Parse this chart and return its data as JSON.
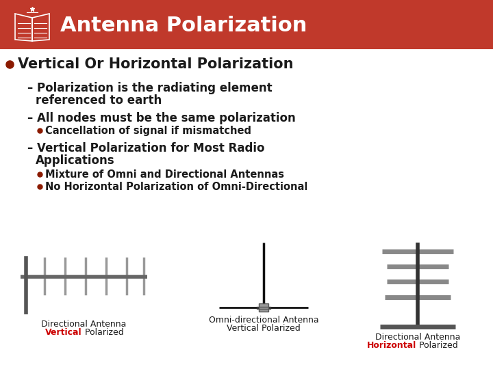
{
  "title": "Antenna Polarization",
  "header_bg": "#C0392B",
  "header_text_color": "#FFFFFF",
  "body_bg": "#FFFFFF",
  "body_text_color": "#1a1a1a",
  "bullet_color": "#8B1A00",
  "red_color": "#CC0000",
  "dark_color": "#1a1a1a",
  "bullet1": "Vertical Or Horizontal Polarization",
  "dash1_a": "Polarization is the radiating element",
  "dash1_b": "referenced to earth",
  "dash2": "All nodes must be the same polarization",
  "sub1": "Cancellation of signal if mismatched",
  "dash3_a": "Vertical Polarization for Most Radio",
  "dash3_b": "Applications",
  "sub2": "Mixture of Omni and Directional Antennas",
  "sub3": "No Horizontal Polarization of Omni-Directional",
  "label1_line1": "Directional Antenna",
  "label1_red": "Vertical",
  "label1_rest": " Polarized",
  "label2_line1": "Omni-directional Antenna",
  "label2_line2": "Vertical Polarized",
  "label3_line1": "Directional Antenna",
  "label3_red": "Horizontal",
  "label3_rest": " Polarized",
  "fig_width": 7.2,
  "fig_height": 5.4,
  "dpi": 100
}
